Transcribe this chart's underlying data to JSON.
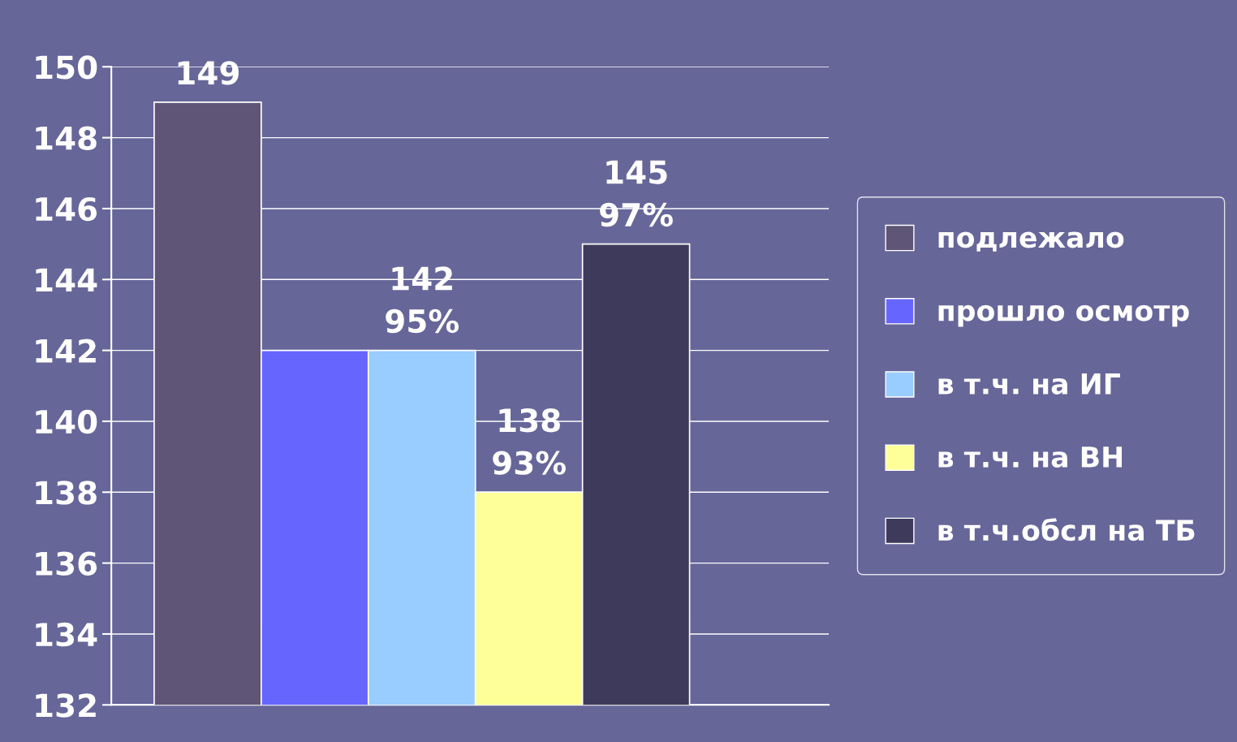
{
  "chart_data": {
    "type": "bar",
    "categories": [
      null
    ],
    "ylim": [
      132,
      150
    ],
    "yticks": [
      132,
      134,
      136,
      138,
      140,
      142,
      144,
      146,
      148,
      150
    ],
    "grid": "y",
    "legend": "right",
    "series": [
      {
        "name": "подлежало",
        "color": "#5f5577",
        "values": [
          149
        ],
        "value_labels": [
          "149"
        ]
      },
      {
        "name": "прошло осмотр",
        "color": "#6666ff",
        "values": [
          142
        ],
        "value_labels": [
          null
        ]
      },
      {
        "name": "в т.ч. на ИГ",
        "color": "#99ccff",
        "values": [
          142
        ],
        "value_labels": [
          "142\n95%"
        ]
      },
      {
        "name": "в т.ч. на ВН",
        "color": "#ffff99",
        "values": [
          138
        ],
        "value_labels": [
          "138\n93%"
        ]
      },
      {
        "name": "в т.ч.обсл на ТБ",
        "color": "#3e3a5c",
        "values": [
          145
        ],
        "value_labels": [
          "145\n97%"
        ]
      }
    ]
  }
}
